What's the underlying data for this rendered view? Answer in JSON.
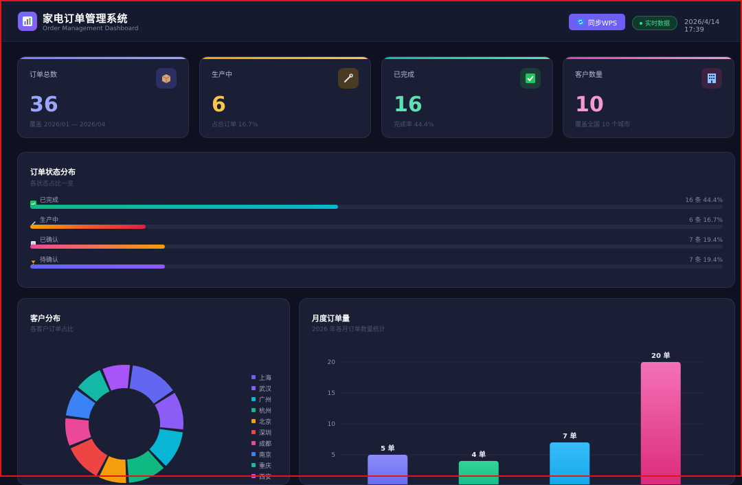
{
  "header": {
    "title": "家电订单管理系统",
    "subtitle": "Order Management Dashboard",
    "sync_button": "同步WPS",
    "live_badge": "实时数据",
    "timestamp": "2026/4/14 17:39"
  },
  "cards": [
    {
      "label": "订单总数",
      "value": "36",
      "sub": "覆盖 2026/01 — 2026/04",
      "icon": "package-icon",
      "accent": "#7b7ff5",
      "value_color": "#9aa6ff",
      "icon_bg": "#2c3060"
    },
    {
      "label": "生产中",
      "value": "6",
      "sub": "占总订单 16.7%",
      "icon": "wrench-icon",
      "accent": "#f59e0b",
      "value_color": "#fbc74a",
      "icon_bg": "#4a3a24"
    },
    {
      "label": "已完成",
      "value": "16",
      "sub": "完成率 44.4%",
      "icon": "check-icon",
      "accent": "#10b9a3",
      "value_color": "#5ee0b0",
      "icon_bg": "#1a3d38"
    },
    {
      "label": "客户数量",
      "value": "10",
      "sub": "覆盖全国 10 个城市",
      "icon": "building-icon",
      "accent": "#d946a8",
      "value_color": "#f59ad0",
      "icon_bg": "#3d2140"
    }
  ],
  "status_panel": {
    "title": "订单状态分布",
    "subtitle": "各状态占比一览",
    "rows": [
      {
        "label": "已完成",
        "stat": "16 条  44.4%",
        "fraction": 0.444,
        "icon": "check-icon",
        "gradient": [
          "#10b981",
          "#06b6d4"
        ],
        "icon_color": "#22c55e"
      },
      {
        "label": "生产中",
        "stat": "6 条  16.7%",
        "fraction": 0.167,
        "icon": "wrench-icon",
        "gradient": [
          "#f59e0b",
          "#e11d48"
        ],
        "icon_color": "#d1d5db"
      },
      {
        "label": "已确认",
        "stat": "7 条  19.4%",
        "fraction": 0.194,
        "icon": "clipboard-icon",
        "gradient": [
          "#ec4899",
          "#f59e0b"
        ],
        "icon_color": "#e5e7eb"
      },
      {
        "label": "待确认",
        "stat": "7 条  19.4%",
        "fraction": 0.194,
        "icon": "hourglass-icon",
        "gradient": [
          "#6366f1",
          "#8b5cf6"
        ],
        "icon_color": "#f59e0b"
      }
    ]
  },
  "customer_panel": {
    "title": "客户分布",
    "subtitle": "各客户订单占比",
    "legend": [
      {
        "name": "上海",
        "color": "#6366f1"
      },
      {
        "name": "武汉",
        "color": "#8b5cf6"
      },
      {
        "name": "广州",
        "color": "#06b6d4"
      },
      {
        "name": "杭州",
        "color": "#10b981"
      },
      {
        "name": "北京",
        "color": "#f59e0b"
      },
      {
        "name": "深圳",
        "color": "#ef4444"
      },
      {
        "name": "成都",
        "color": "#ec4899"
      },
      {
        "name": "南京",
        "color": "#3b82f6"
      },
      {
        "name": "重庆",
        "color": "#14b8a6"
      },
      {
        "name": "西安",
        "color": "#d946ef"
      }
    ]
  },
  "month_panel": {
    "title": "月度订单量",
    "subtitle": "2026 年各月订单数量统计"
  },
  "chart_data": [
    {
      "type": "pie",
      "title": "客户分布",
      "labels": [
        "上海",
        "武汉",
        "广州",
        "杭州",
        "北京",
        "深圳",
        "成都",
        "南京",
        "重庆",
        "西安"
      ],
      "values": [
        5,
        4,
        4,
        4,
        3,
        4,
        3,
        3,
        3,
        3
      ],
      "colors": [
        "#6366f1",
        "#8b5cf6",
        "#06b6d4",
        "#10b981",
        "#f59e0b",
        "#ef4444",
        "#ec4899",
        "#3b82f6",
        "#14b8a6",
        "#a855f7"
      ]
    },
    {
      "type": "bar",
      "title": "月度订单量",
      "values": [
        5,
        4,
        7,
        20
      ],
      "data_labels": [
        "5 单",
        "4 单",
        "7 单",
        "20 单"
      ],
      "yticks": [
        "5",
        "10",
        "15",
        "20"
      ],
      "ylim": [
        0,
        22
      ],
      "gradients": [
        [
          "#8b8cf7",
          "#6366f1"
        ],
        [
          "#34d399",
          "#10b981"
        ],
        [
          "#38bdf8",
          "#0ea5e9"
        ],
        [
          "#f472b6",
          "#db2777"
        ]
      ]
    }
  ]
}
